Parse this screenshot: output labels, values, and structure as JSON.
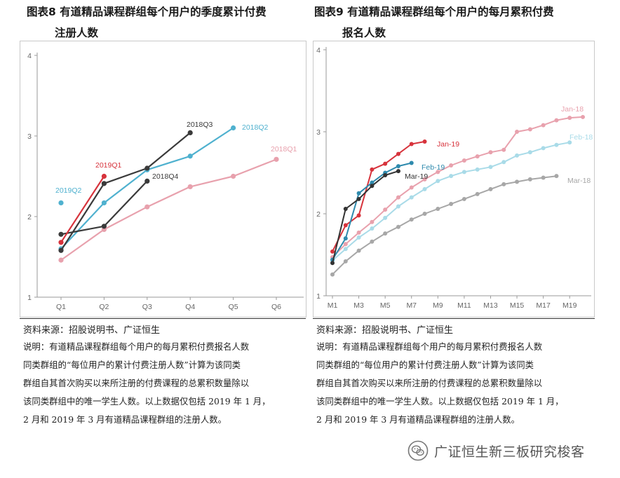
{
  "figure8": {
    "title_line1": "图表8 有道精品课程群组每个用户的季度累计付费",
    "title_line2": "注册人数",
    "source": "资料来源：招股说明书、广证恒生",
    "note_lines": [
      "说明：有道精品课程群组每个用户的每月累积付费报名人数",
      "同类群组的“每位用户的累计付费注册人数”计算为该同类",
      "群组自其首次购买以来所注册的付费课程的总累积数量除以",
      "该同类群组中的唯一学生人数。以上数据仅包括 2019 年 1 月，",
      "2 月和 2019 年 3 月有道精品课程群组的注册人数。"
    ]
  },
  "figure9": {
    "title_line1": "图表9 有道精品课程群组每个用户的每月累积付费",
    "title_line2": "报名人数",
    "source": "资料来源：招股说明书、广证恒生",
    "note_lines": [
      "说明：有道精品课程群组每个用户的每月累积付费报名人数",
      "同类群组的“每位用户的累计付费注册人数”计算为该同类",
      "群组自其首次购买以来所注册的付费课程的总累积数量除以",
      "该同类群组中的唯一学生人数。以上数据仅包括 2019 年 1 月，",
      "2 月和 2019 年 3 月有道精品课程群组的注册人数。"
    ]
  },
  "brand": {
    "text": "广证恒生新三板研究梭客",
    "icon": "wechat-icon"
  },
  "chart_data": [
    {
      "type": "line",
      "x": [
        "Q1",
        "Q2",
        "Q3",
        "Q4",
        "Q5",
        "Q6"
      ],
      "ylim": [
        1,
        4
      ],
      "yticks": [
        "1",
        "2",
        "3",
        "4"
      ],
      "grid": false,
      "series": [
        {
          "name": "2018Q1",
          "color": "#e8a1ad",
          "values": [
            1.46,
            1.84,
            2.12,
            2.37,
            2.5,
            2.71
          ]
        },
        {
          "name": "2018Q2",
          "color": "#4fb1cf",
          "values": [
            1.6,
            2.17,
            2.58,
            2.75,
            3.1,
            null
          ]
        },
        {
          "name": "2018Q3",
          "color": "#3a3a3a",
          "values": [
            1.58,
            2.41,
            2.6,
            3.04,
            null,
            null
          ]
        },
        {
          "name": "2018Q4",
          "color": "#3a3a3a",
          "values": [
            1.78,
            1.88,
            2.44,
            null,
            null,
            null
          ]
        },
        {
          "name": "2019Q1",
          "color": "#d7333c",
          "values": [
            1.68,
            2.5,
            null,
            null,
            null,
            null
          ]
        },
        {
          "name": "2019Q2",
          "color": "#4fb1cf",
          "values": [
            2.17,
            null,
            null,
            null,
            null,
            null
          ]
        }
      ]
    },
    {
      "type": "line",
      "x": [
        "M1",
        "M2",
        "M3",
        "M4",
        "M5",
        "M6",
        "M7",
        "M8",
        "M9",
        "M10",
        "M11",
        "M12",
        "M13",
        "M14",
        "M15",
        "M16",
        "M17",
        "M18",
        "M19",
        "M20"
      ],
      "xtick_labels": [
        "M1",
        "M3",
        "M5",
        "M7",
        "M9",
        "M11",
        "M13",
        "M15",
        "M17",
        "M19"
      ],
      "ylim": [
        1,
        4
      ],
      "yticks": [
        "1",
        "2",
        "3",
        "4"
      ],
      "grid": false,
      "series": [
        {
          "name": "Jan-18",
          "color": "#e8a1ad",
          "values": [
            1.47,
            1.63,
            1.77,
            1.9,
            2.05,
            2.2,
            2.32,
            2.42,
            2.51,
            2.59,
            2.65,
            2.7,
            2.75,
            2.78,
            3.0,
            3.03,
            3.08,
            3.14,
            3.17,
            3.18
          ]
        },
        {
          "name": "Feb-18",
          "color": "#a9dbe8",
          "values": [
            1.43,
            1.57,
            1.71,
            1.82,
            1.95,
            2.09,
            2.2,
            2.3,
            2.4,
            2.46,
            2.51,
            2.54,
            2.57,
            2.63,
            2.71,
            2.75,
            2.8,
            2.84,
            2.87,
            null
          ]
        },
        {
          "name": "Mar-18",
          "color": "#a7a7a7",
          "values": [
            1.26,
            1.42,
            1.55,
            1.66,
            1.76,
            1.84,
            1.93,
            2.0,
            2.06,
            2.12,
            2.18,
            2.24,
            2.3,
            2.36,
            2.39,
            2.42,
            2.44,
            2.46,
            null,
            null
          ]
        },
        {
          "name": "Jan-19",
          "color": "#d7333c",
          "values": [
            1.54,
            1.86,
            1.98,
            2.54,
            2.61,
            2.73,
            2.85,
            2.88,
            null,
            null,
            null,
            null,
            null,
            null,
            null,
            null,
            null,
            null,
            null,
            null
          ]
        },
        {
          "name": "Feb-19",
          "color": "#2e8aad",
          "values": [
            1.44,
            1.7,
            2.25,
            2.38,
            2.5,
            2.58,
            2.62,
            null,
            null,
            null,
            null,
            null,
            null,
            null,
            null,
            null,
            null,
            null,
            null,
            null
          ]
        },
        {
          "name": "Mar-19",
          "color": "#333333",
          "values": [
            1.4,
            2.06,
            2.18,
            2.34,
            2.47,
            2.52,
            null,
            null,
            null,
            null,
            null,
            null,
            null,
            null,
            null,
            null,
            null,
            null,
            null,
            null
          ]
        }
      ]
    }
  ]
}
